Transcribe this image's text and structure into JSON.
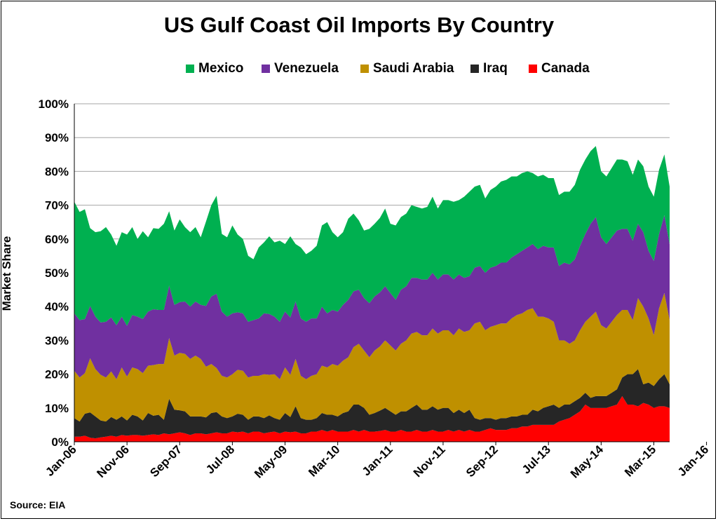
{
  "chart_data": {
    "type": "area",
    "title": "US Gulf Coast Oil Imports By Country",
    "ylabel": "Market Share",
    "source": "Source: EIA",
    "ylim": [
      0,
      100
    ],
    "y_ticks": [
      "0%",
      "10%",
      "20%",
      "30%",
      "40%",
      "50%",
      "60%",
      "70%",
      "80%",
      "90%",
      "100%"
    ],
    "x_ticks": [
      "Jan-06",
      "Nov-06",
      "Sep-07",
      "Jul-08",
      "May-09",
      "Mar-10",
      "Jan-11",
      "Nov-11",
      "Sep-12",
      "Jul-13",
      "May-14",
      "Mar-15",
      "Jan-16"
    ],
    "grid": "horizontal",
    "legend_position": "top",
    "stacked": true,
    "series": [
      {
        "name": "Canada",
        "color": "#ff0000",
        "values": [
          1.5,
          1.5,
          1.8,
          1.2,
          1.0,
          1.3,
          1.5,
          1.8,
          1.5,
          2.0,
          1.8,
          2.0,
          2.0,
          1.8,
          2.0,
          2.2,
          2.0,
          2.5,
          2.2,
          2.5,
          2.8,
          2.5,
          2.0,
          2.5,
          2.5,
          2.2,
          2.5,
          2.8,
          2.5,
          2.5,
          3.0,
          2.8,
          3.0,
          2.5,
          3.0,
          3.0,
          2.5,
          2.8,
          3.0,
          2.5,
          3.0,
          2.8,
          3.0,
          2.5,
          2.5,
          3.0,
          3.0,
          3.5,
          3.0,
          3.5,
          3.0,
          3.0,
          3.0,
          3.5,
          3.0,
          3.5,
          3.0,
          3.0,
          3.2,
          3.5,
          3.0,
          3.0,
          3.5,
          3.0,
          3.0,
          3.5,
          3.0,
          3.0,
          3.5,
          3.0,
          3.0,
          3.5,
          3.0,
          3.5,
          3.0,
          3.5,
          3.0,
          3.0,
          3.5,
          4.0,
          3.5,
          3.5,
          3.5,
          4.0,
          4.0,
          4.5,
          4.5,
          5.0,
          5.0,
          5.0,
          5.0,
          5.0,
          6.0,
          6.5,
          7.0,
          8.0,
          9.0,
          11.0,
          10.0,
          10.0,
          10.0,
          10.0,
          10.5,
          11.0,
          13.5,
          11.0,
          11.0,
          10.5,
          11.5,
          11.0,
          10.0,
          10.5,
          10.5,
          10.0
        ]
      },
      {
        "name": "Iraq",
        "color": "#262626",
        "values": [
          5.5,
          4.5,
          6.5,
          7.5,
          6.5,
          5.0,
          4.5,
          5.5,
          5.0,
          5.5,
          4.5,
          6.0,
          5.5,
          4.5,
          6.5,
          5.5,
          6.0,
          4.0,
          10.5,
          7.0,
          6.5,
          6.5,
          5.5,
          5.0,
          5.0,
          5.0,
          6.0,
          6.0,
          5.0,
          4.5,
          4.5,
          5.5,
          5.0,
          4.0,
          4.5,
          4.5,
          4.5,
          5.0,
          4.0,
          4.0,
          5.5,
          4.5,
          7.5,
          4.5,
          4.0,
          3.5,
          4.0,
          5.0,
          5.0,
          4.5,
          4.5,
          5.5,
          6.0,
          7.5,
          8.0,
          6.5,
          5.0,
          5.5,
          6.0,
          6.5,
          6.0,
          5.0,
          5.5,
          6.0,
          7.0,
          7.5,
          6.5,
          6.5,
          7.0,
          6.5,
          7.0,
          6.5,
          5.5,
          6.0,
          5.5,
          6.0,
          4.0,
          3.5,
          3.5,
          3.0,
          3.0,
          3.5,
          3.5,
          3.5,
          3.5,
          3.5,
          3.5,
          4.5,
          4.0,
          5.0,
          5.5,
          6.0,
          4.0,
          4.5,
          4.0,
          4.0,
          4.0,
          3.5,
          3.0,
          3.5,
          3.5,
          3.5,
          4.0,
          4.5,
          5.5,
          9.0,
          9.0,
          11.0,
          5.5,
          6.5,
          6.5,
          8.0,
          9.5,
          7.0
        ]
      },
      {
        "name": "Saudi Arabia",
        "color": "#bf9000",
        "values": [
          14.0,
          13.0,
          12.0,
          16.0,
          14.0,
          13.5,
          13.0,
          13.5,
          12.0,
          14.5,
          13.0,
          14.0,
          14.0,
          14.0,
          14.0,
          15.0,
          15.0,
          16.5,
          18.0,
          16.0,
          17.0,
          17.0,
          17.0,
          18.0,
          17.0,
          15.0,
          14.5,
          13.0,
          12.0,
          12.0,
          12.5,
          13.0,
          13.0,
          12.5,
          12.0,
          12.0,
          13.0,
          12.0,
          13.0,
          12.0,
          13.5,
          12.5,
          14.0,
          12.5,
          12.0,
          13.0,
          13.0,
          14.0,
          14.0,
          15.0,
          15.0,
          15.5,
          16.0,
          17.0,
          18.0,
          17.0,
          17.0,
          18.5,
          19.0,
          20.0,
          19.5,
          19.0,
          20.0,
          21.0,
          22.0,
          21.5,
          22.0,
          22.0,
          23.0,
          22.5,
          23.0,
          23.0,
          23.0,
          24.0,
          24.0,
          23.5,
          28.0,
          29.0,
          26.0,
          27.0,
          28.0,
          28.0,
          28.0,
          29.0,
          30.0,
          30.0,
          31.0,
          30.0,
          28.0,
          27.0,
          26.0,
          24.5,
          20.0,
          19.0,
          18.0,
          18.0,
          20.0,
          21.0,
          24.0,
          25.0,
          21.0,
          20.0,
          21.0,
          22.0,
          20.0,
          19.0,
          16.0,
          21.0,
          23.0,
          19.0,
          15.0,
          21.0,
          24.0,
          19.0
        ]
      },
      {
        "name": "Venezuela",
        "color": "#7030a0",
        "values": [
          17.0,
          17.0,
          16.0,
          15.5,
          15.5,
          15.5,
          16.5,
          16.0,
          16.0,
          15.0,
          15.0,
          15.5,
          15.5,
          16.0,
          16.0,
          16.5,
          16.0,
          16.0,
          15.5,
          15.0,
          15.0,
          15.5,
          15.5,
          16.0,
          16.0,
          18.0,
          20.0,
          22.0,
          19.0,
          18.0,
          18.0,
          17.0,
          17.0,
          16.5,
          16.5,
          17.0,
          18.0,
          18.0,
          17.0,
          17.0,
          16.5,
          17.0,
          17.0,
          17.0,
          17.0,
          17.0,
          16.5,
          17.5,
          16.0,
          16.0,
          16.0,
          16.5,
          17.0,
          16.5,
          16.0,
          15.5,
          16.0,
          16.0,
          16.0,
          16.0,
          15.5,
          15.0,
          16.0,
          16.0,
          16.5,
          16.0,
          16.5,
          16.5,
          16.5,
          16.0,
          16.5,
          16.5,
          16.5,
          16.0,
          16.0,
          16.0,
          16.5,
          16.5,
          17.0,
          17.5,
          17.5,
          18.0,
          18.0,
          18.0,
          18.0,
          18.5,
          18.5,
          19.0,
          20.0,
          21.0,
          21.0,
          22.0,
          22.0,
          23.0,
          23.5,
          24.0,
          25.0,
          26.0,
          27.5,
          28.0,
          26.0,
          25.0,
          25.0,
          25.0,
          24.0,
          24.0,
          23.5,
          22.0,
          22.0,
          20.0,
          22.0,
          22.0,
          23.0,
          22.5
        ]
      },
      {
        "name": "Mexico",
        "color": "#00b050",
        "values": [
          33.0,
          32.0,
          32.5,
          23.0,
          25.0,
          27.0,
          28.0,
          24.5,
          23.5,
          25.0,
          27.0,
          26.0,
          23.0,
          26.0,
          22.0,
          24.0,
          24.0,
          25.5,
          22.0,
          22.0,
          24.5,
          22.0,
          22.0,
          22.0,
          20.0,
          25.0,
          27.0,
          29.0,
          23.0,
          23.5,
          26.0,
          23.0,
          22.0,
          19.5,
          18.0,
          21.0,
          21.0,
          23.0,
          22.0,
          24.0,
          20.0,
          24.0,
          17.0,
          21.0,
          20.0,
          20.0,
          21.5,
          24.0,
          27.0,
          23.0,
          22.0,
          21.5,
          24.0,
          23.0,
          20.5,
          20.0,
          22.0,
          21.5,
          22.0,
          23.0,
          20.5,
          22.0,
          21.5,
          21.5,
          21.5,
          21.0,
          21.0,
          21.5,
          22.5,
          21.0,
          22.0,
          22.0,
          23.0,
          22.0,
          24.0,
          25.0,
          24.0,
          24.0,
          22.0,
          23.0,
          23.5,
          24.0,
          24.5,
          24.0,
          23.0,
          23.0,
          22.5,
          21.0,
          21.5,
          21.0,
          20.5,
          20.5,
          21.0,
          21.0,
          21.5,
          22.0,
          22.5,
          22.0,
          21.5,
          21.0,
          19.5,
          20.0,
          20.5,
          21.0,
          20.5,
          20.0,
          19.5,
          19.0,
          19.5,
          19.0,
          19.0,
          19.0,
          18.0,
          17.0
        ]
      }
    ]
  }
}
